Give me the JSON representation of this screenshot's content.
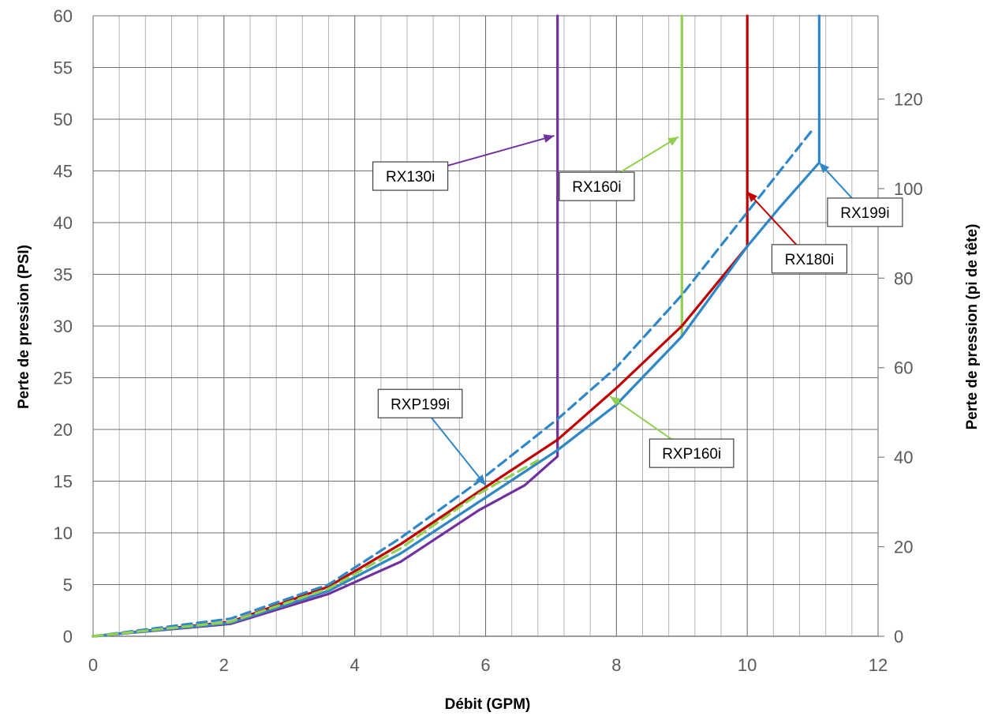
{
  "chart_data": {
    "type": "line",
    "title": "",
    "xlabel": "Débit (GPM)",
    "ylabel": "Perte de pression (PSI)",
    "y2label": "Perte de pression (pi de tête)",
    "xlim": [
      0,
      12
    ],
    "ylim": [
      0,
      60
    ],
    "y2lim": [
      0,
      138.6
    ],
    "x_ticks": [
      0,
      2,
      4,
      6,
      8,
      10,
      12
    ],
    "y_ticks": [
      0,
      5,
      10,
      15,
      20,
      25,
      30,
      35,
      40,
      45,
      50,
      55,
      60
    ],
    "y2_ticks": [
      0,
      20,
      40,
      60,
      80,
      100,
      120
    ],
    "x_minor_step": 0.4,
    "grid": true,
    "legend": "callouts",
    "series": [
      {
        "name": "RX130i",
        "color": "#7030a0",
        "dash": false,
        "x": [
          0,
          2.1,
          3.6,
          4.7,
          5.9,
          6.6,
          7.1,
          7.1
        ],
        "y": [
          0,
          1.2,
          4.1,
          7.2,
          12.2,
          14.6,
          17.4,
          60
        ]
      },
      {
        "name": "RX160i",
        "color": "#92d050",
        "dash": false,
        "x": [
          0,
          2.1,
          3.6,
          4.7,
          5.9,
          7.1,
          8.0,
          9.0,
          9.0
        ],
        "y": [
          0,
          1.3,
          4.4,
          8.0,
          13.0,
          18.0,
          22.4,
          29.0,
          60
        ]
      },
      {
        "name": "RX180i",
        "color": "#c00000",
        "dash": false,
        "x": [
          0,
          2.1,
          3.6,
          4.7,
          5.9,
          7.1,
          8.0,
          9.0,
          10.0,
          10.0
        ],
        "y": [
          0,
          1.4,
          4.8,
          8.9,
          14.0,
          19.0,
          24.0,
          30.0,
          37.7,
          60
        ]
      },
      {
        "name": "RX199i",
        "color": "#2e87c8",
        "dash": false,
        "x": [
          0,
          2.1,
          3.6,
          4.7,
          5.9,
          7.1,
          8.0,
          9.0,
          10.0,
          10.5,
          11.1,
          11.1
        ],
        "y": [
          0,
          1.3,
          4.4,
          8.0,
          13.0,
          18.0,
          22.4,
          29.0,
          37.7,
          41.5,
          45.8,
          60
        ]
      },
      {
        "name": "RXP199i",
        "color": "#2e87c8",
        "dash": true,
        "x": [
          0,
          2.1,
          3.6,
          4.7,
          5.9,
          7.1,
          8.0,
          9.0,
          10.0,
          11.0
        ],
        "y": [
          0,
          1.7,
          5.0,
          9.5,
          15.0,
          21.0,
          26.0,
          33.0,
          41.0,
          49.0
        ]
      },
      {
        "name": "RXP160i",
        "color": "#92d050",
        "dash": true,
        "x": [
          0,
          2.1,
          3.6,
          4.7,
          5.9,
          6.8
        ],
        "y": [
          0,
          1.4,
          4.6,
          8.5,
          13.8,
          17.0
        ]
      }
    ],
    "callouts": [
      {
        "label": "RX130i",
        "series": "RX130i",
        "box": [
          4.85,
          44.5
        ],
        "target": [
          7.05,
          48.4
        ]
      },
      {
        "label": "RX160i",
        "series": "RX160i",
        "box": [
          7.7,
          43.5
        ],
        "target": [
          8.95,
          48.3
        ]
      },
      {
        "label": "RX180i",
        "series": "RX180i",
        "box": [
          10.95,
          36.5
        ],
        "target": [
          10.0,
          43.0
        ]
      },
      {
        "label": "RX199i",
        "series": "RX199i",
        "box": [
          11.8,
          41.0
        ],
        "target": [
          11.1,
          45.8
        ]
      },
      {
        "label": "RXP199i",
        "series": "RXP199i",
        "box": [
          5.0,
          22.5
        ],
        "target": [
          6.0,
          14.6
        ]
      },
      {
        "label": "RXP160i",
        "series": "RXP160i",
        "box": [
          9.15,
          17.7
        ],
        "target": [
          7.9,
          23.2
        ]
      }
    ]
  }
}
